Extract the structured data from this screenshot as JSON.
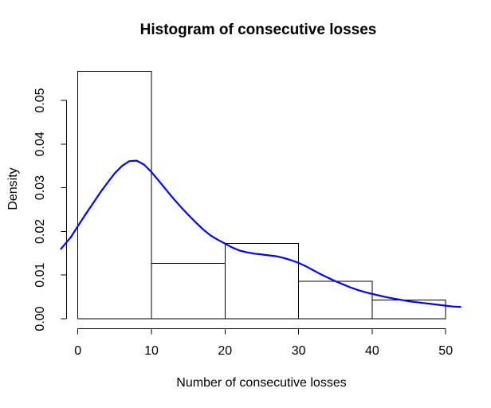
{
  "colors": {
    "curve": "#0000FF",
    "axis": "#000000",
    "bar_border": "#000000",
    "background": "#FFFFFF",
    "text": "#000000"
  },
  "chart_data": {
    "type": "histogram",
    "title": "Histogram of consecutive losses",
    "xlabel": "Number of consecutive losses",
    "ylabel": "Density",
    "xlim": [
      -2.5,
      52.5
    ],
    "ylim": [
      0,
      0.0575
    ],
    "grid": false,
    "legend": "none",
    "x_ticks": [
      0,
      10,
      20,
      30,
      40,
      50
    ],
    "x_tick_labels": [
      "0",
      "10",
      "20",
      "30",
      "40",
      "50"
    ],
    "y_ticks": [
      0,
      0.01,
      0.02,
      0.03,
      0.04,
      0.05
    ],
    "y_tick_labels": [
      "0.00",
      "0.01",
      "0.02",
      "0.03",
      "0.04",
      "0.05"
    ],
    "histogram": {
      "bin_edges": [
        0,
        10,
        20,
        30,
        40,
        50
      ],
      "bin_densities": [
        0.0567,
        0.0127,
        0.0172,
        0.0086,
        0.0043
      ],
      "bar_fill": "none",
      "bar_border_color": "#000000"
    },
    "density_curve": {
      "color": "#0000FF",
      "x": [
        -2.3,
        -1,
        0,
        1,
        2,
        3,
        4,
        5,
        6,
        7,
        8,
        9,
        10,
        11,
        12,
        13,
        14,
        15,
        16,
        17,
        18,
        19,
        20,
        21,
        22,
        23,
        24,
        25,
        26,
        27,
        28,
        29,
        30,
        31,
        32,
        33,
        34,
        35,
        36,
        37,
        38,
        39,
        40,
        41,
        42,
        43,
        44,
        45,
        46,
        47,
        48,
        49,
        50,
        51,
        52
      ],
      "y": [
        0.016,
        0.0186,
        0.0212,
        0.0238,
        0.0263,
        0.0288,
        0.0311,
        0.0333,
        0.035,
        0.0361,
        0.0362,
        0.0353,
        0.0336,
        0.0316,
        0.0295,
        0.0275,
        0.0256,
        0.0238,
        0.0221,
        0.0205,
        0.0191,
        0.0181,
        0.0172,
        0.0163,
        0.0156,
        0.0152,
        0.0149,
        0.0147,
        0.0145,
        0.0143,
        0.0139,
        0.0134,
        0.0128,
        0.012,
        0.0111,
        0.0102,
        0.0094,
        0.0086,
        0.0079,
        0.0072,
        0.0066,
        0.0061,
        0.0057,
        0.0053,
        0.0049,
        0.0046,
        0.0043,
        0.004,
        0.0038,
        0.0036,
        0.0034,
        0.0032,
        0.003,
        0.0028,
        0.0027
      ]
    }
  }
}
